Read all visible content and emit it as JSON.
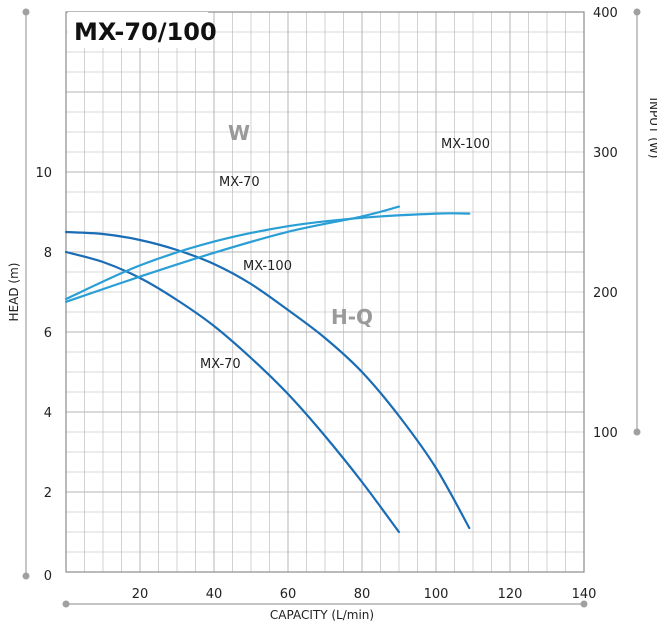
{
  "chart_data": {
    "type": "line",
    "title": "MX-70/100",
    "xlabel": "CAPACITY (L/min)",
    "ylabel": "HEAD (m)",
    "y2label": "INPUT (W)",
    "xlim": [
      0,
      140
    ],
    "ylim": [
      0,
      14
    ],
    "y2lim": [
      0,
      400
    ],
    "x_ticks": [
      "20",
      "40",
      "60",
      "80",
      "100",
      "120",
      "140"
    ],
    "y_ticks": [
      "0",
      "2",
      "4",
      "6",
      "8",
      "10"
    ],
    "y2_ticks": [
      "100",
      "200",
      "300",
      "400"
    ],
    "grid": true,
    "group_labels": {
      "power": "W",
      "head": "H-Q"
    },
    "series": [
      {
        "name": "MX-100",
        "group": "head",
        "axis": "left",
        "x": [
          0,
          10,
          20,
          30,
          40,
          50,
          60,
          70,
          80,
          90,
          100,
          109
        ],
        "y": [
          8.5,
          8.45,
          8.3,
          8.05,
          7.7,
          7.2,
          6.55,
          5.85,
          5.0,
          3.9,
          2.6,
          1.1
        ]
      },
      {
        "name": "MX-70",
        "group": "head",
        "axis": "left",
        "x": [
          0,
          10,
          20,
          30,
          40,
          50,
          60,
          70,
          80,
          90
        ],
        "y": [
          8.0,
          7.75,
          7.35,
          6.8,
          6.15,
          5.35,
          4.45,
          3.4,
          2.25,
          1.0
        ]
      },
      {
        "name": "MX-100",
        "group": "power",
        "axis": "right",
        "x": [
          0,
          20,
          40,
          60,
          80,
          100,
          109
        ],
        "y": [
          195,
          219,
          236,
          247,
          253,
          256,
          256
        ]
      },
      {
        "name": "MX-70",
        "group": "power",
        "axis": "right",
        "x": [
          0,
          20,
          40,
          60,
          80,
          90
        ],
        "y": [
          193,
          211,
          228,
          243,
          254,
          261
        ]
      }
    ]
  },
  "colors": {
    "curve": "#1a6db5",
    "power_curve": "#2a9fd6",
    "grid": "#b5b5b5",
    "axis": "#a0a0a0",
    "group_label": "#9a9a9a"
  }
}
